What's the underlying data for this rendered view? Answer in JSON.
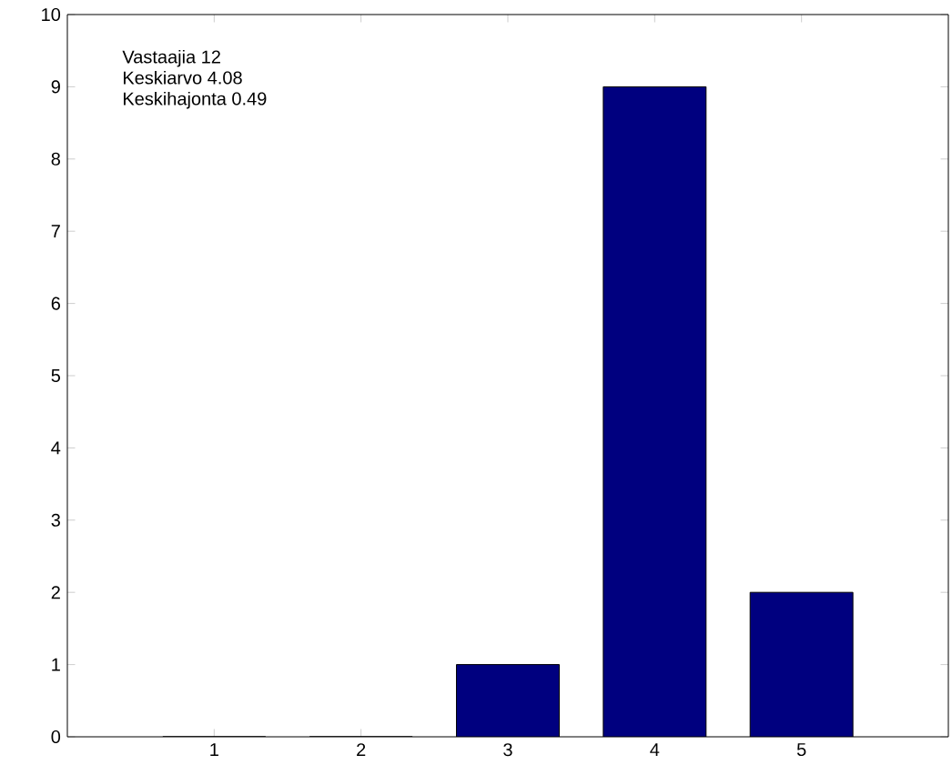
{
  "chart_data": {
    "type": "bar",
    "categories": [
      "1",
      "2",
      "3",
      "4",
      "5"
    ],
    "values": [
      0,
      0,
      1,
      9,
      2
    ],
    "color": "#00007f",
    "ylim": [
      0,
      10
    ],
    "yticks": [
      0,
      1,
      2,
      3,
      4,
      5,
      6,
      7,
      8,
      9,
      10
    ],
    "annotations": [
      "Vastaajia 12",
      "Keskiarvo 4.08",
      "Keskihajonta 0.49"
    ],
    "grid": false
  }
}
